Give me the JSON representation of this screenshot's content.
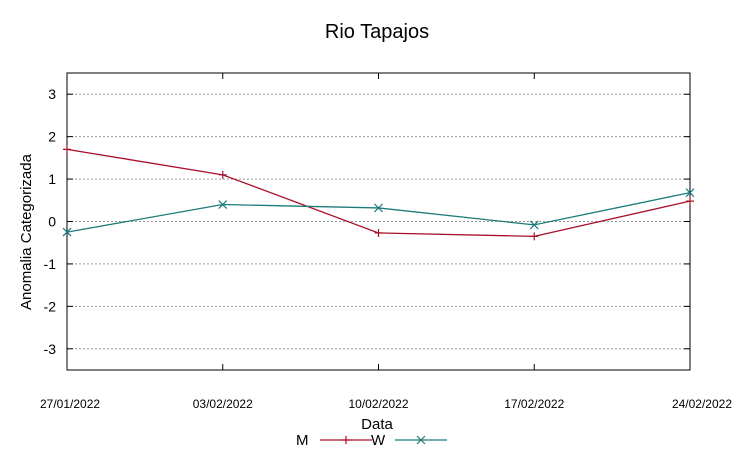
{
  "chart_data": {
    "type": "line",
    "title": "Rio Tapajos",
    "xlabel": "Data",
    "ylabel": "Anomalia Categorizada",
    "categories": [
      "27/01/2022",
      "03/02/2022",
      "10/02/2022",
      "17/02/2022",
      "24/02/2022"
    ],
    "ylim": [
      -3.5,
      3.5
    ],
    "yticks": [
      -3,
      -2,
      -1,
      0,
      1,
      2,
      3
    ],
    "grid": true,
    "legend_position": "bottom-center",
    "series": [
      {
        "name": "M",
        "color": "#a8102a",
        "marker": "plus",
        "values": [
          1.7,
          1.1,
          -0.27,
          -0.35,
          0.48
        ]
      },
      {
        "name": "W",
        "color": "#1e7b7b",
        "marker": "cross",
        "values": [
          -0.25,
          0.4,
          0.32,
          -0.08,
          0.68
        ]
      }
    ]
  }
}
